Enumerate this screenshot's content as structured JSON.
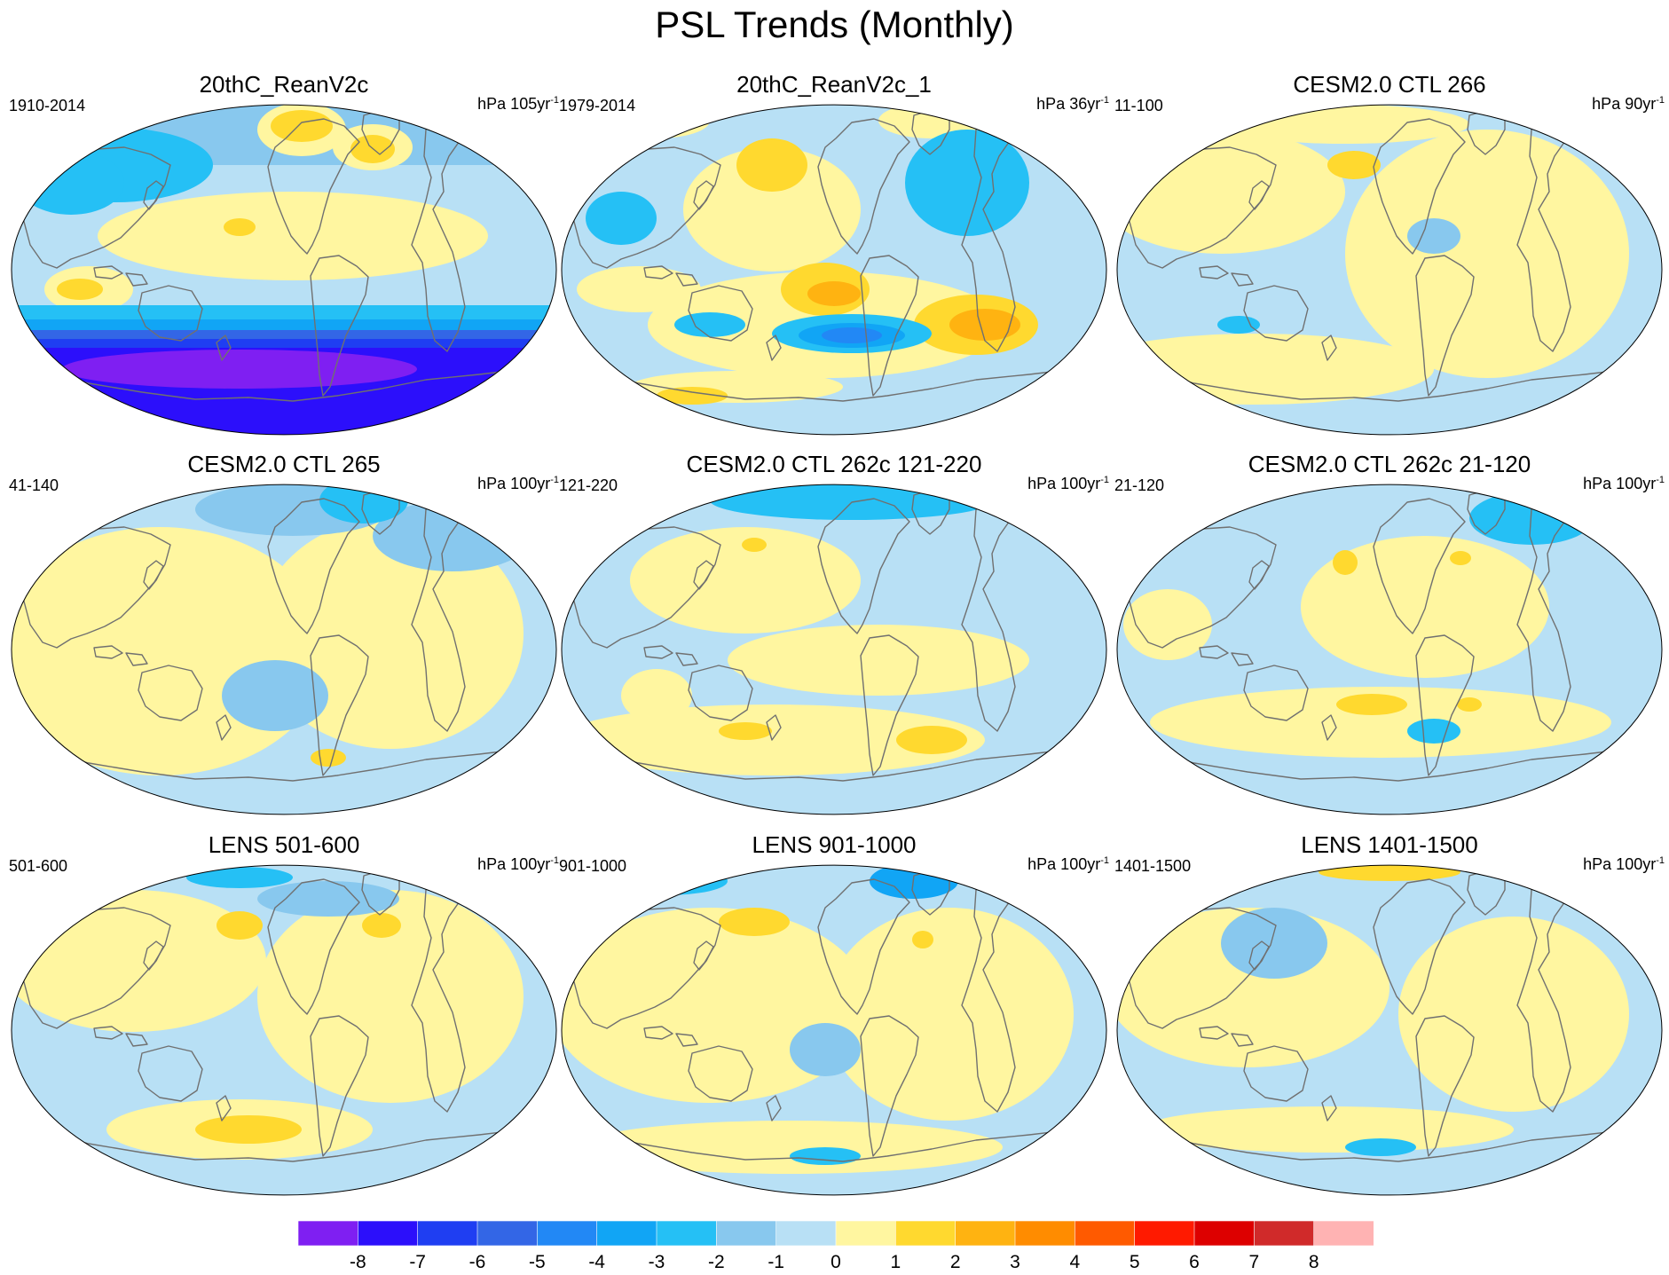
{
  "title": "PSL Trends (Monthly)",
  "colors": {
    "ocean_base": "#b8e0f5",
    "land_line": "#707070",
    "scale": [
      "#7f1ff2",
      "#2c0ffb",
      "#1f3ef2",
      "#3366e6",
      "#2288f5",
      "#11a5f5",
      "#25c0f5",
      "#88c8ee",
      "#b8e0f5",
      "#fff6a0",
      "#ffd92f",
      "#ffb311",
      "#ff8c00",
      "#ff5a00",
      "#ff1a00",
      "#dd0000",
      "#d02a2a",
      "#ffb3b3"
    ]
  },
  "colorbar": {
    "labels": [
      "-8",
      "-7",
      "-6",
      "-5",
      "-4",
      "-3",
      "-2",
      "-1",
      "0",
      "1",
      "2",
      "3",
      "4",
      "5",
      "6",
      "7",
      "8"
    ]
  },
  "panels": [
    {
      "title": "20thC_ReanV2c",
      "period": "1910-2014",
      "units": "hPa 105yr",
      "exp": "-1"
    },
    {
      "title": "20thC_ReanV2c_1",
      "period": "1979-2014",
      "units": "hPa 36yr",
      "exp": "-1"
    },
    {
      "title": "CESM2.0 CTL 266",
      "period": "11-100",
      "units": "hPa 90yr",
      "exp": "-1"
    },
    {
      "title": "CESM2.0 CTL 265",
      "period": "41-140",
      "units": "hPa 100yr",
      "exp": "-1"
    },
    {
      "title": "CESM2.0 CTL 262c 121-220",
      "period": "121-220",
      "units": "hPa 100yr",
      "exp": "-1"
    },
    {
      "title": "CESM2.0 CTL 262c 21-120",
      "period": "21-120",
      "units": "hPa 100yr",
      "exp": "-1"
    },
    {
      "title": "LENS 501-600",
      "period": "501-600",
      "units": "hPa 100yr",
      "exp": "-1"
    },
    {
      "title": "LENS 901-1000",
      "period": "901-1000",
      "units": "hPa 100yr",
      "exp": "-1"
    },
    {
      "title": "LENS 1401-1500",
      "period": "1401-1500",
      "units": "hPa 100yr",
      "exp": "-1"
    }
  ]
}
